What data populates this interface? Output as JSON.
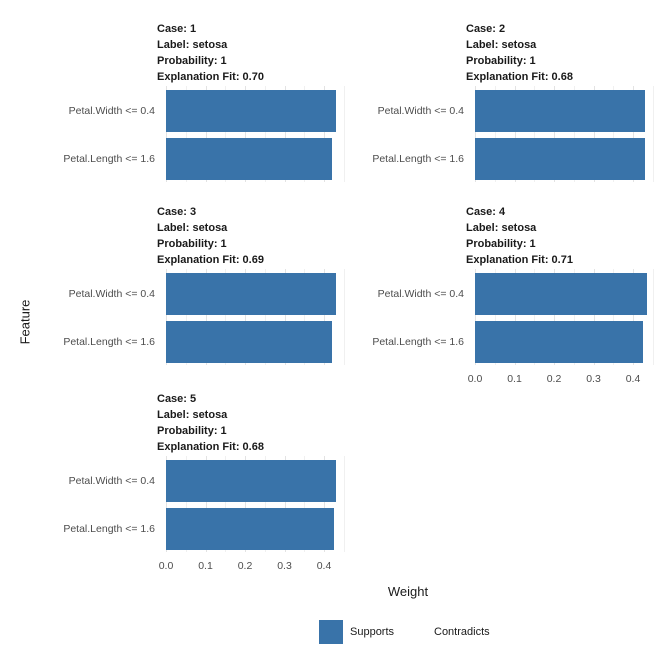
{
  "chart_data": {
    "type": "bar",
    "orientation": "horizontal",
    "xlabel": "Weight",
    "ylabel": "Feature",
    "x_ticks": [
      "0.0",
      "0.1",
      "0.2",
      "0.3",
      "0.4"
    ],
    "xlim": [
      0,
      0.46
    ],
    "grid": true,
    "categories": [
      "Petal.Width <= 0.4",
      "Petal.Length <= 1.6"
    ],
    "legend": {
      "position": "bottom",
      "entries": [
        {
          "label": "Supports",
          "color": "#3973A9"
        },
        {
          "label": "Contradicts",
          "color": "transparent"
        }
      ]
    },
    "facets": [
      {
        "strip_lines": [
          "Case: 1",
          "Label: setosa",
          "Probability: 1",
          "Explanation Fit: 0.70"
        ],
        "values": [
          0.43,
          0.42
        ],
        "col": 0,
        "row": 0,
        "show_x_axis": false
      },
      {
        "strip_lines": [
          "Case: 2",
          "Label: setosa",
          "Probability: 1",
          "Explanation Fit: 0.68"
        ],
        "values": [
          0.43,
          0.43
        ],
        "col": 1,
        "row": 0,
        "show_x_axis": false
      },
      {
        "strip_lines": [
          "Case: 3",
          "Label: setosa",
          "Probability: 1",
          "Explanation Fit: 0.69"
        ],
        "values": [
          0.43,
          0.42
        ],
        "col": 0,
        "row": 1,
        "show_x_axis": false
      },
      {
        "strip_lines": [
          "Case: 4",
          "Label: setosa",
          "Probability: 1",
          "Explanation Fit: 0.71"
        ],
        "values": [
          0.435,
          0.425
        ],
        "col": 1,
        "row": 1,
        "show_x_axis": true
      },
      {
        "strip_lines": [
          "Case: 5",
          "Label: setosa",
          "Probability: 1",
          "Explanation Fit: 0.68"
        ],
        "values": [
          0.43,
          0.425
        ],
        "col": 0,
        "row": 2,
        "show_x_axis": true
      }
    ]
  }
}
